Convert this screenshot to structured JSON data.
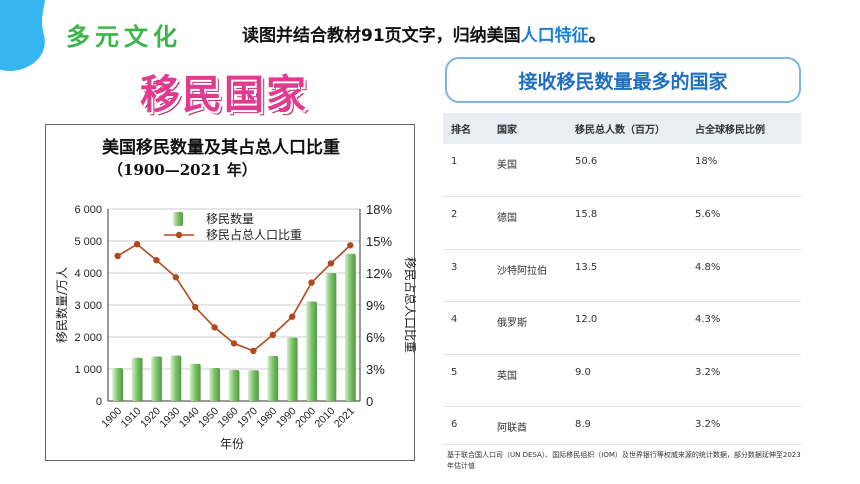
{
  "header": {
    "section_title": "多元文化",
    "instruction_prefix": "读图并结合教材91页文字，归纳美国",
    "instruction_highlight": "人口特征",
    "instruction_suffix": "。"
  },
  "big_title": "移民国家",
  "pill_title": "接收移民数量最多的国家",
  "colors": {
    "accent_green": "#3bb54a",
    "highlight_blue": "#1e7fd6",
    "title_pink": "#e13a8f",
    "bar_green": "#7cc36a",
    "line_brown": "#b3481f"
  },
  "chart_data": {
    "type": "bar",
    "title": "美国移民数量及其占总人口比重",
    "subtitle": "（1900—2021 年）",
    "categories": [
      "1900",
      "1910",
      "1920",
      "1930",
      "1940",
      "1950",
      "1960",
      "1970",
      "1980",
      "1990",
      "2000",
      "2010",
      "2021"
    ],
    "xlabel": "年份",
    "ylabel_left": "移民数量/万人",
    "ylabel_right": "移民占总人口比重",
    "ylim_left": [
      0,
      6000
    ],
    "ylim_right": [
      0,
      18
    ],
    "yticks_left": [
      "0",
      "1 000",
      "2 000",
      "3 000",
      "4 000",
      "5 000",
      "6 000"
    ],
    "yticks_right": [
      "0",
      "3%",
      "6%",
      "9%",
      "12%",
      "15%",
      "18%"
    ],
    "series": [
      {
        "name": "移民数量",
        "type": "bar",
        "axis": "left",
        "values": [
          1030,
          1350,
          1390,
          1420,
          1160,
          1030,
          970,
          960,
          1410,
          1980,
          3110,
          4000,
          4600
        ]
      },
      {
        "name": "移民占总人口比重",
        "type": "line",
        "axis": "right",
        "values": [
          13.6,
          14.7,
          13.2,
          11.6,
          8.8,
          6.9,
          5.4,
          4.7,
          6.2,
          7.9,
          11.1,
          12.9,
          14.6
        ]
      }
    ],
    "grid": true,
    "legend": "top-left"
  },
  "table": {
    "headers": [
      "排名",
      "国家",
      "移民总人数（百万）",
      "占全球移民比例"
    ],
    "rows": [
      [
        "1",
        "美国",
        "50.6",
        "18%"
      ],
      [
        "2",
        "德国",
        "15.8",
        "5.6%"
      ],
      [
        "3",
        "沙特阿拉伯",
        "13.5",
        "4.8%"
      ],
      [
        "4",
        "俄罗斯",
        "12.0",
        "4.3%"
      ],
      [
        "5",
        "英国",
        "9.0",
        "3.2%"
      ],
      [
        "6",
        "阿联酋",
        "8.9",
        "3.2%"
      ]
    ],
    "note": "基于联合国人口司（UN DESA）、国际移民组织（IOM）及世界银行等权威来源的统计数据，部分数据延伸至2023年估计值"
  }
}
